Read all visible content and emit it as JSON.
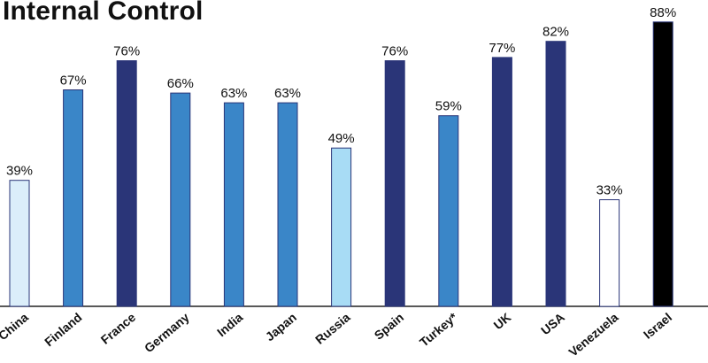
{
  "chart_data": {
    "type": "bar",
    "title": "Internal Control",
    "xlabel": "",
    "ylabel": "",
    "ylim": [
      0,
      100
    ],
    "grid": false,
    "categories": [
      "China",
      "Finland",
      "France",
      "Germany",
      "India",
      "Japan",
      "Russia",
      "Spain",
      "Turkey*",
      "UK",
      "USA",
      "Venezuela",
      "Israel"
    ],
    "values": [
      39,
      67,
      76,
      66,
      63,
      63,
      49,
      76,
      59,
      77,
      82,
      33,
      88
    ],
    "value_labels": [
      "39%",
      "67%",
      "76%",
      "66%",
      "63%",
      "63%",
      "49%",
      "76%",
      "59%",
      "77%",
      "82%",
      "33%",
      "88%"
    ],
    "bar_colors": [
      "#dbeefa",
      "#3a86c8",
      "#2a3578",
      "#3a86c8",
      "#3a86c8",
      "#3a86c8",
      "#a8dcf5",
      "#2a3578",
      "#3a86c8",
      "#2a3578",
      "#2a3578",
      "#ffffff",
      "#000000"
    ],
    "bar_outline_color": "#2a3578",
    "axis_color": "#222222"
  }
}
